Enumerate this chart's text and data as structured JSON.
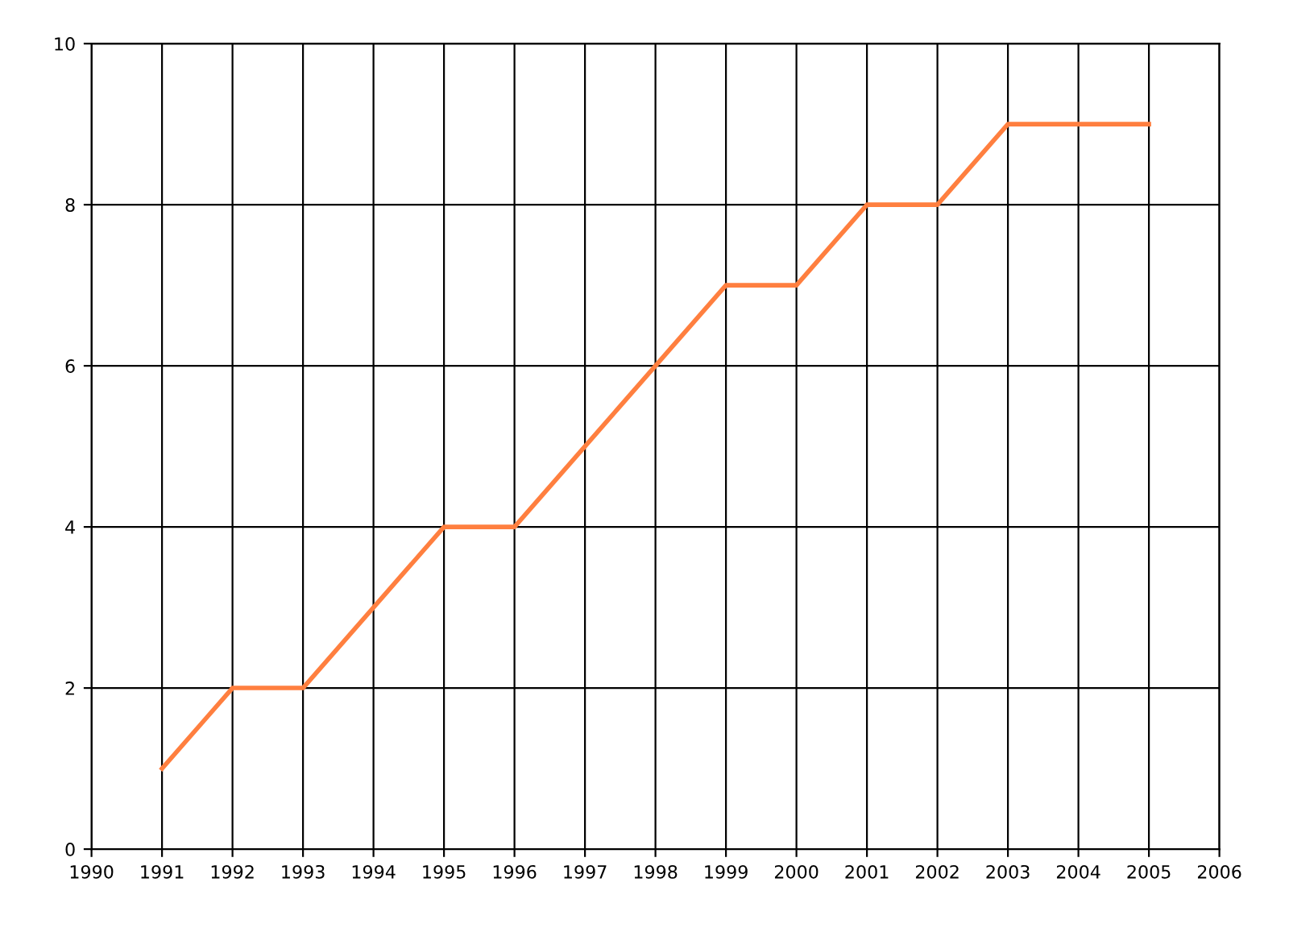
{
  "chart_data": {
    "type": "line",
    "x": [
      1991,
      1992,
      1993,
      1994,
      1995,
      1996,
      1997,
      1998,
      1999,
      2000,
      2001,
      2002,
      2003,
      2004,
      2005
    ],
    "series": [
      {
        "color": "#ff7f3f",
        "values": [
          1,
          2,
          2,
          3,
          4,
          4,
          5,
          6,
          7,
          7,
          8,
          8,
          9,
          9,
          9
        ]
      }
    ],
    "xlim": [
      1990,
      2006
    ],
    "xticks": [
      1990,
      1991,
      1992,
      1993,
      1994,
      1995,
      1996,
      1997,
      1998,
      1999,
      2000,
      2001,
      2002,
      2003,
      2004,
      2005,
      2006
    ],
    "ylim": [
      0,
      10
    ],
    "yticks": [
      0,
      2,
      4,
      6,
      8,
      10
    ],
    "grid": true,
    "marker": "none",
    "line_style": "solid"
  }
}
